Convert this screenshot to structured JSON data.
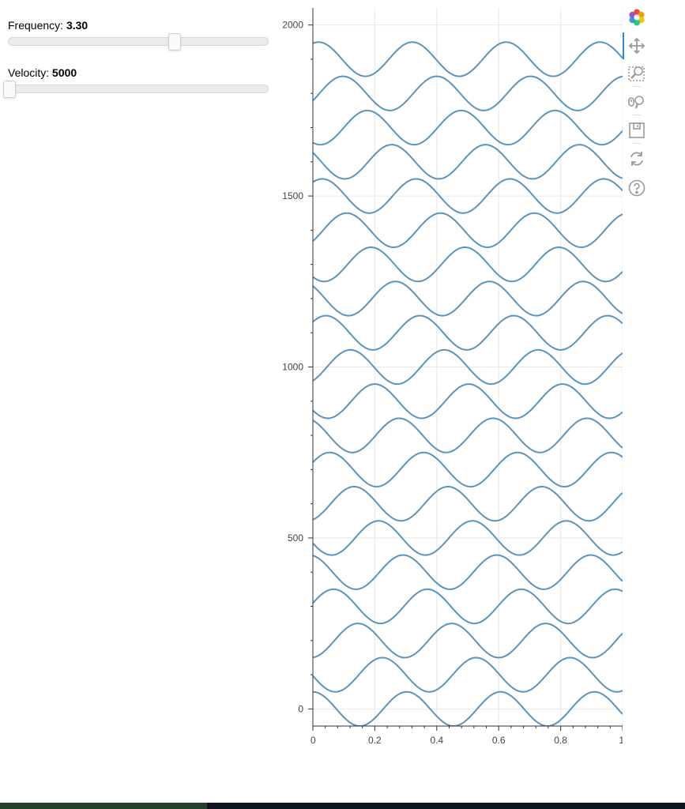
{
  "controls": {
    "frequency": {
      "label": "Frequency:",
      "value": "3.30",
      "min": 0.1,
      "max": 5.1,
      "current": 3.3
    },
    "velocity": {
      "label": "Velocity:",
      "value": "5000",
      "min": 5000,
      "max": 50000,
      "current": 5000
    }
  },
  "toolbar": {
    "tools": [
      {
        "name": "bokeh-logo",
        "icon": "bokeh-logo-icon"
      },
      {
        "name": "pan-tool",
        "icon": "pan-icon",
        "active": true
      },
      {
        "name": "box-zoom-tool",
        "icon": "box-zoom-icon"
      },
      {
        "name": "wheel-zoom-tool",
        "icon": "wheel-zoom-icon"
      },
      {
        "name": "save-tool",
        "icon": "save-icon"
      },
      {
        "name": "reset-tool",
        "icon": "reset-icon"
      },
      {
        "name": "help-tool",
        "icon": "help-icon"
      }
    ]
  },
  "chart_data": {
    "type": "line",
    "title": "",
    "xlabel": "",
    "ylabel": "",
    "xlim": [
      0,
      1
    ],
    "ylim": [
      -50,
      2050
    ],
    "x_ticks": [
      "0",
      "0.2",
      "0.4",
      "0.6",
      "0.8",
      "1"
    ],
    "y_ticks": [
      "0",
      "500",
      "1000",
      "1500",
      "2000"
    ],
    "grid": true,
    "line_color": "#5b93bf",
    "curve_count": 20,
    "curve_spacing": 100,
    "amplitude": 50,
    "frequency": 3.3,
    "first_curve_phase_at_x0": 1.0,
    "phase_step_per_curve": -0.26
  }
}
